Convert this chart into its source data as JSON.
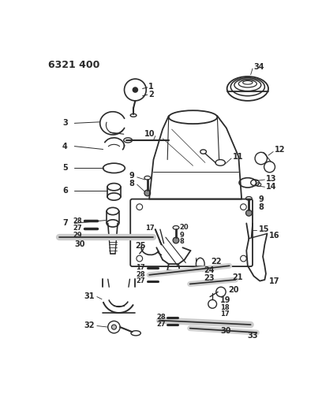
{
  "title": "6321 400",
  "bg_color": "#ffffff",
  "line_color": "#2a2a2a",
  "figsize": [
    4.08,
    5.33
  ],
  "dpi": 100
}
